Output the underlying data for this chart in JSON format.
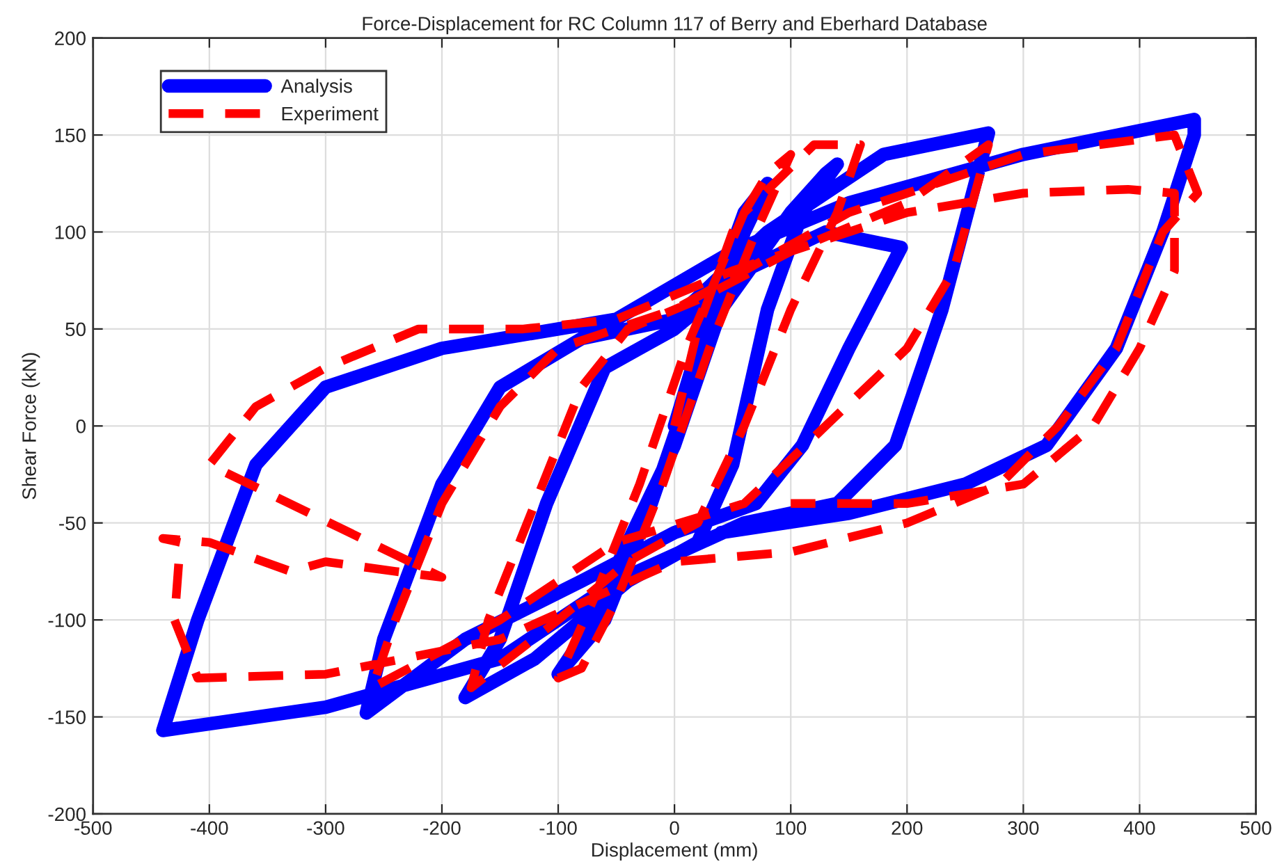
{
  "chart_data": {
    "type": "line",
    "title": "Force-Displacement for RC Column 117 of Berry and Eberhard Database",
    "xlabel": "Displacement (mm)",
    "ylabel": "Shear Force (kN)",
    "xlim": [
      -500,
      500
    ],
    "xticks": [
      -500,
      -400,
      -300,
      -200,
      -100,
      0,
      100,
      200,
      300,
      400,
      500
    ],
    "ylim": [
      -200,
      200
    ],
    "yticks": [
      -200,
      -150,
      -100,
      -50,
      0,
      50,
      100,
      150,
      200
    ],
    "grid": true,
    "legend": "top left",
    "series": [
      {
        "name": "Analysis",
        "color": "#0000ff",
        "line_style": "solid",
        "x": [
          0,
          30,
          60,
          80,
          60,
          20,
          -20,
          -60,
          -100,
          -80,
          -40,
          0,
          40,
          100,
          130,
          140,
          110,
          80,
          50,
          20,
          -40,
          -120,
          -180,
          -150,
          -110,
          -60,
          0,
          60,
          130,
          195,
          150,
          110,
          70,
          0,
          -80,
          -180,
          -265,
          -250,
          -200,
          -150,
          -80,
          0,
          80,
          180,
          270,
          230,
          190,
          140,
          60,
          -50,
          -150,
          -300,
          -440,
          -410,
          -360,
          -300,
          -200,
          -50,
          50,
          150,
          300,
          447,
          447,
          420,
          380,
          320,
          250,
          150,
          40
        ],
        "values": [
          0,
          60,
          110,
          125,
          100,
          30,
          -40,
          -100,
          -128,
          -110,
          -60,
          -10,
          60,
          110,
          130,
          135,
          110,
          60,
          -20,
          -60,
          -80,
          -120,
          -140,
          -110,
          -40,
          30,
          50,
          80,
          100,
          92,
          40,
          -10,
          -40,
          -55,
          -80,
          -110,
          -148,
          -110,
          -30,
          20,
          45,
          55,
          100,
          140,
          151,
          60,
          -10,
          -40,
          -50,
          -80,
          -120,
          -145,
          -157,
          -100,
          -20,
          20,
          40,
          55,
          90,
          115,
          140,
          158,
          150,
          100,
          40,
          -10,
          -30,
          -45,
          -55
        ]
      },
      {
        "name": "Experiment",
        "color": "#ff0000",
        "line_style": "dashed",
        "x": [
          0,
          20,
          50,
          80,
          100,
          70,
          30,
          -10,
          -50,
          -80,
          -100,
          -70,
          -30,
          10,
          60,
          120,
          160,
          140,
          100,
          60,
          20,
          -40,
          -100,
          -175,
          -160,
          -120,
          -80,
          -40,
          20,
          100,
          200,
          270,
          240,
          200,
          130,
          60,
          -50,
          -150,
          -260,
          -240,
          -200,
          -150,
          -100,
          0,
          150,
          300,
          430,
          450,
          420,
          380,
          330,
          280,
          200,
          100,
          0,
          -150,
          -300,
          -410,
          -430,
          -425,
          -440,
          -400,
          -330,
          -300,
          -240,
          -200,
          -400,
          -360,
          -300,
          -220,
          -130,
          -50,
          50,
          200,
          300,
          390,
          430,
          430,
          400,
          360,
          300,
          200,
          100
        ],
        "values": [
          0,
          50,
          100,
          130,
          140,
          100,
          40,
          -30,
          -90,
          -125,
          -130,
          -90,
          -30,
          40,
          110,
          145,
          145,
          110,
          60,
          0,
          -50,
          -70,
          -100,
          -135,
          -100,
          -40,
          20,
          50,
          65,
          90,
          115,
          145,
          80,
          40,
          0,
          -40,
          -60,
          -100,
          -135,
          -100,
          -40,
          10,
          40,
          60,
          110,
          140,
          150,
          120,
          100,
          40,
          0,
          -30,
          -50,
          -65,
          -70,
          -110,
          -128,
          -130,
          -100,
          -60,
          -58,
          -60,
          -75,
          -70,
          -75,
          -78,
          -20,
          10,
          30,
          50,
          50,
          55,
          80,
          110,
          120,
          122,
          120,
          80,
          40,
          0,
          -30,
          -40,
          -40
        ]
      }
    ]
  }
}
